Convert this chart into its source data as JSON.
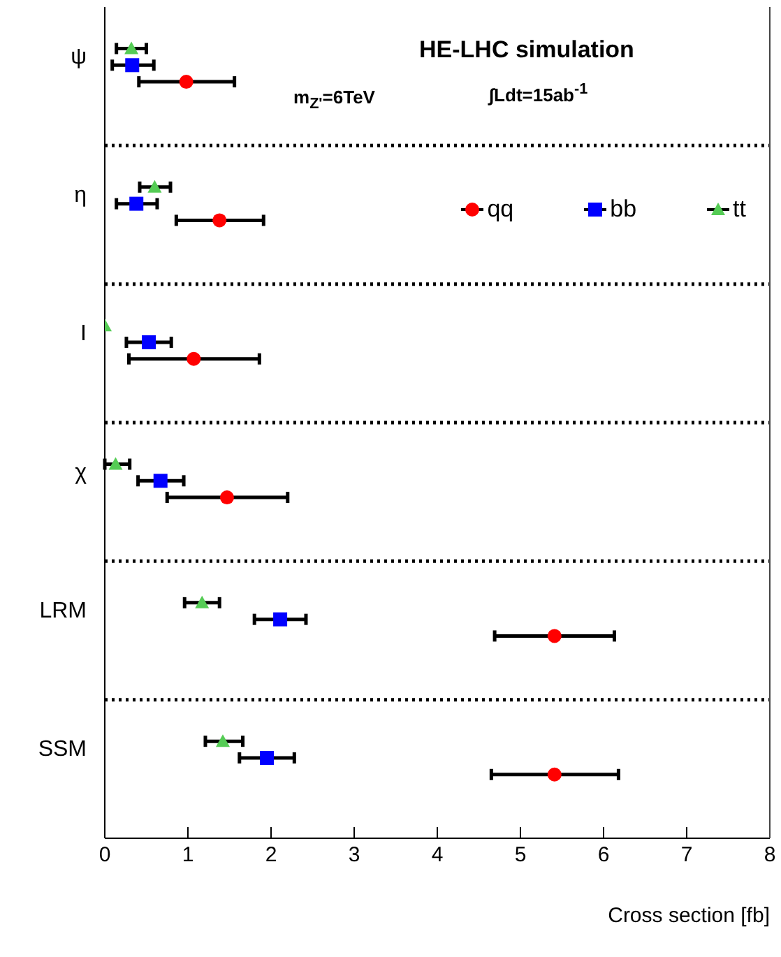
{
  "chart_data": {
    "type": "scatter",
    "orientation": "horizontal",
    "categories": [
      "ψ",
      "η",
      "I",
      "χ",
      "LRM",
      "SSM"
    ],
    "xlabel": "Cross section [fb]",
    "xlim": [
      0,
      8
    ],
    "xticks": [
      0,
      1,
      2,
      3,
      4,
      5,
      6,
      7,
      8
    ],
    "grid": "y",
    "legend": "top right",
    "annotations": [
      "HE-LHC simulation",
      "m$_{Z'}$=6TeV",
      "∫Ldt=15ab$^{-1}$"
    ],
    "series": [
      {
        "name": "qq",
        "color": "#ff0000",
        "marker": "circle",
        "values": [
          0.98,
          1.38,
          1.07,
          1.47,
          5.41,
          5.41
        ],
        "errors": [
          [
            0.41,
            1.56
          ],
          [
            0.86,
            1.91
          ],
          [
            0.29,
            1.86
          ],
          [
            0.75,
            2.2
          ],
          [
            4.69,
            6.13
          ],
          [
            4.65,
            6.18
          ]
        ]
      },
      {
        "name": "bb",
        "color": "#0000ff",
        "marker": "square",
        "values": [
          0.33,
          0.38,
          0.53,
          0.67,
          2.11,
          1.95
        ],
        "errors": [
          [
            0.09,
            0.59
          ],
          [
            0.14,
            0.63
          ],
          [
            0.26,
            0.8
          ],
          [
            0.4,
            0.95
          ],
          [
            1.8,
            2.42
          ],
          [
            1.62,
            2.28
          ]
        ]
      },
      {
        "name": "tt",
        "color": "#55cc55",
        "marker": "triangle",
        "values": [
          0.32,
          0.6,
          0,
          0.13,
          1.17,
          1.42
        ],
        "errors": [
          [
            0.14,
            0.5
          ],
          [
            0.42,
            0.79
          ],
          null,
          [
            0,
            0.3
          ],
          [
            0.96,
            1.38
          ],
          [
            1.21,
            1.66
          ]
        ]
      }
    ]
  }
}
